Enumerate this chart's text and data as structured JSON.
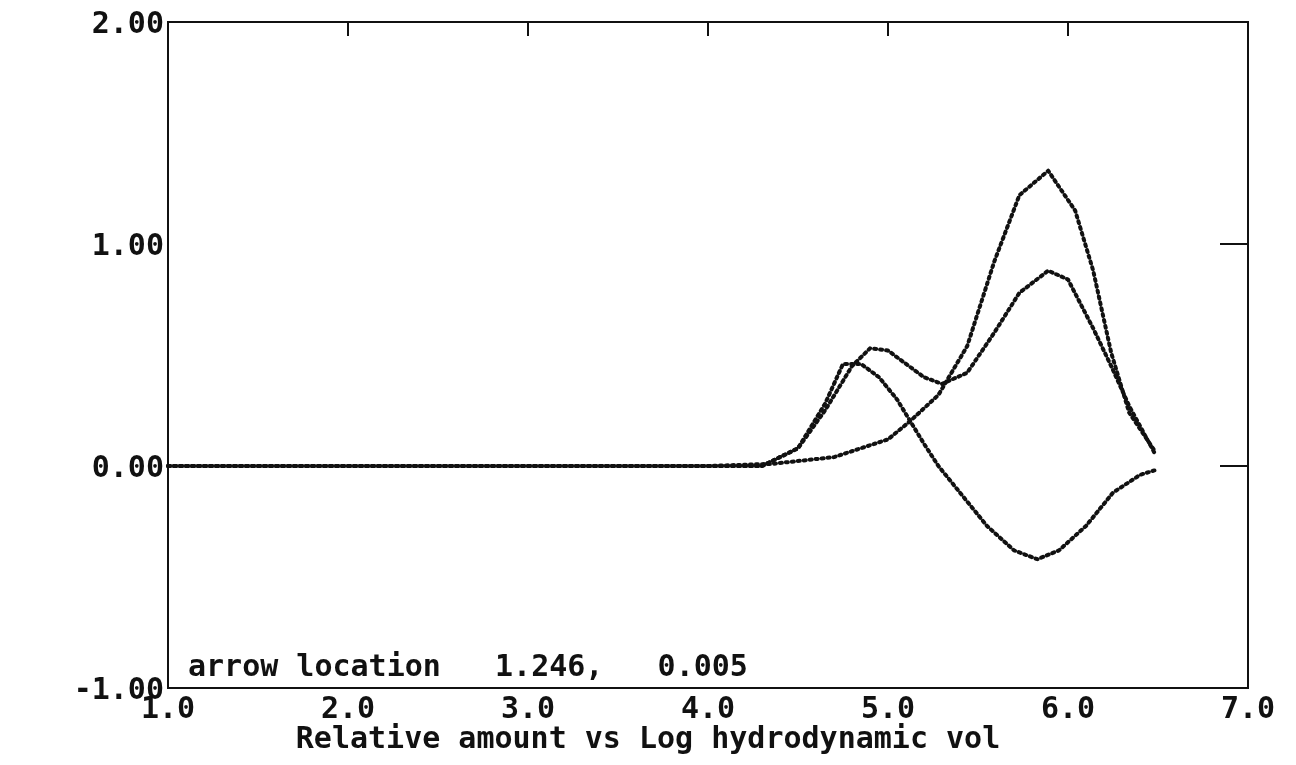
{
  "chart_data": {
    "type": "line",
    "xlabel": "Relative amount vs Log hydrodynamic vol",
    "annotations": [
      "arrow location   1.246,   0.005"
    ],
    "xlim": [
      1.0,
      7.0
    ],
    "xticks": [
      {
        "value": 1,
        "label": "1.0"
      },
      {
        "value": 2,
        "label": "2.0"
      },
      {
        "value": 3,
        "label": "3.0"
      },
      {
        "value": 4,
        "label": "4.0"
      },
      {
        "value": 5,
        "label": "5.0"
      },
      {
        "value": 6,
        "label": "6.0"
      },
      {
        "value": 7,
        "label": "7.0"
      }
    ],
    "ylim": [
      -1.0,
      2.0
    ],
    "yticks": [
      {
        "value": -1,
        "label": "-1.00"
      },
      {
        "value": 0,
        "label": "0.00"
      },
      {
        "value": 1,
        "label": "1.00"
      },
      {
        "value": 2,
        "label": "2.00"
      }
    ],
    "line_style": "dotted",
    "marker": "none",
    "grid": false,
    "series": [
      {
        "color": "#111111",
        "x": [
          1.0,
          2.0,
          3.0,
          4.0,
          4.3,
          4.5,
          4.65,
          4.8,
          4.9,
          5.0,
          5.1,
          5.2,
          5.3,
          5.44,
          5.59,
          5.73,
          5.89,
          6.0,
          6.14,
          6.24,
          6.34,
          6.48
        ],
        "values": [
          0,
          0,
          0,
          0,
          0,
          0.08,
          0.25,
          0.45,
          0.53,
          0.52,
          0.46,
          0.4,
          0.37,
          0.42,
          0.6,
          0.78,
          0.88,
          0.84,
          0.62,
          0.45,
          0.27,
          0.06
        ]
      },
      {
        "color": "#111111",
        "x": [
          1.0,
          2.0,
          3.0,
          4.0,
          4.3,
          4.5,
          4.65,
          4.75,
          4.85,
          4.95,
          5.05,
          5.2,
          5.28,
          5.4,
          5.55,
          5.7,
          5.83,
          5.95,
          6.1,
          6.25,
          6.4,
          6.48
        ],
        "values": [
          0,
          0,
          0,
          0,
          0,
          0.08,
          0.28,
          0.46,
          0.46,
          0.4,
          0.3,
          0.1,
          0,
          -0.12,
          -0.27,
          -0.38,
          -0.42,
          -0.38,
          -0.27,
          -0.12,
          -0.04,
          -0.02
        ]
      },
      {
        "color": "#111111",
        "x": [
          1.0,
          2.0,
          3.0,
          4.0,
          4.36,
          4.7,
          5.0,
          5.12,
          5.28,
          5.44,
          5.59,
          5.73,
          5.89,
          6.04,
          6.14,
          6.24,
          6.34,
          6.48
        ],
        "values": [
          0,
          0,
          0,
          0,
          0.01,
          0.04,
          0.12,
          0.2,
          0.32,
          0.54,
          0.92,
          1.22,
          1.33,
          1.15,
          0.88,
          0.51,
          0.24,
          0.07
        ]
      }
    ]
  }
}
